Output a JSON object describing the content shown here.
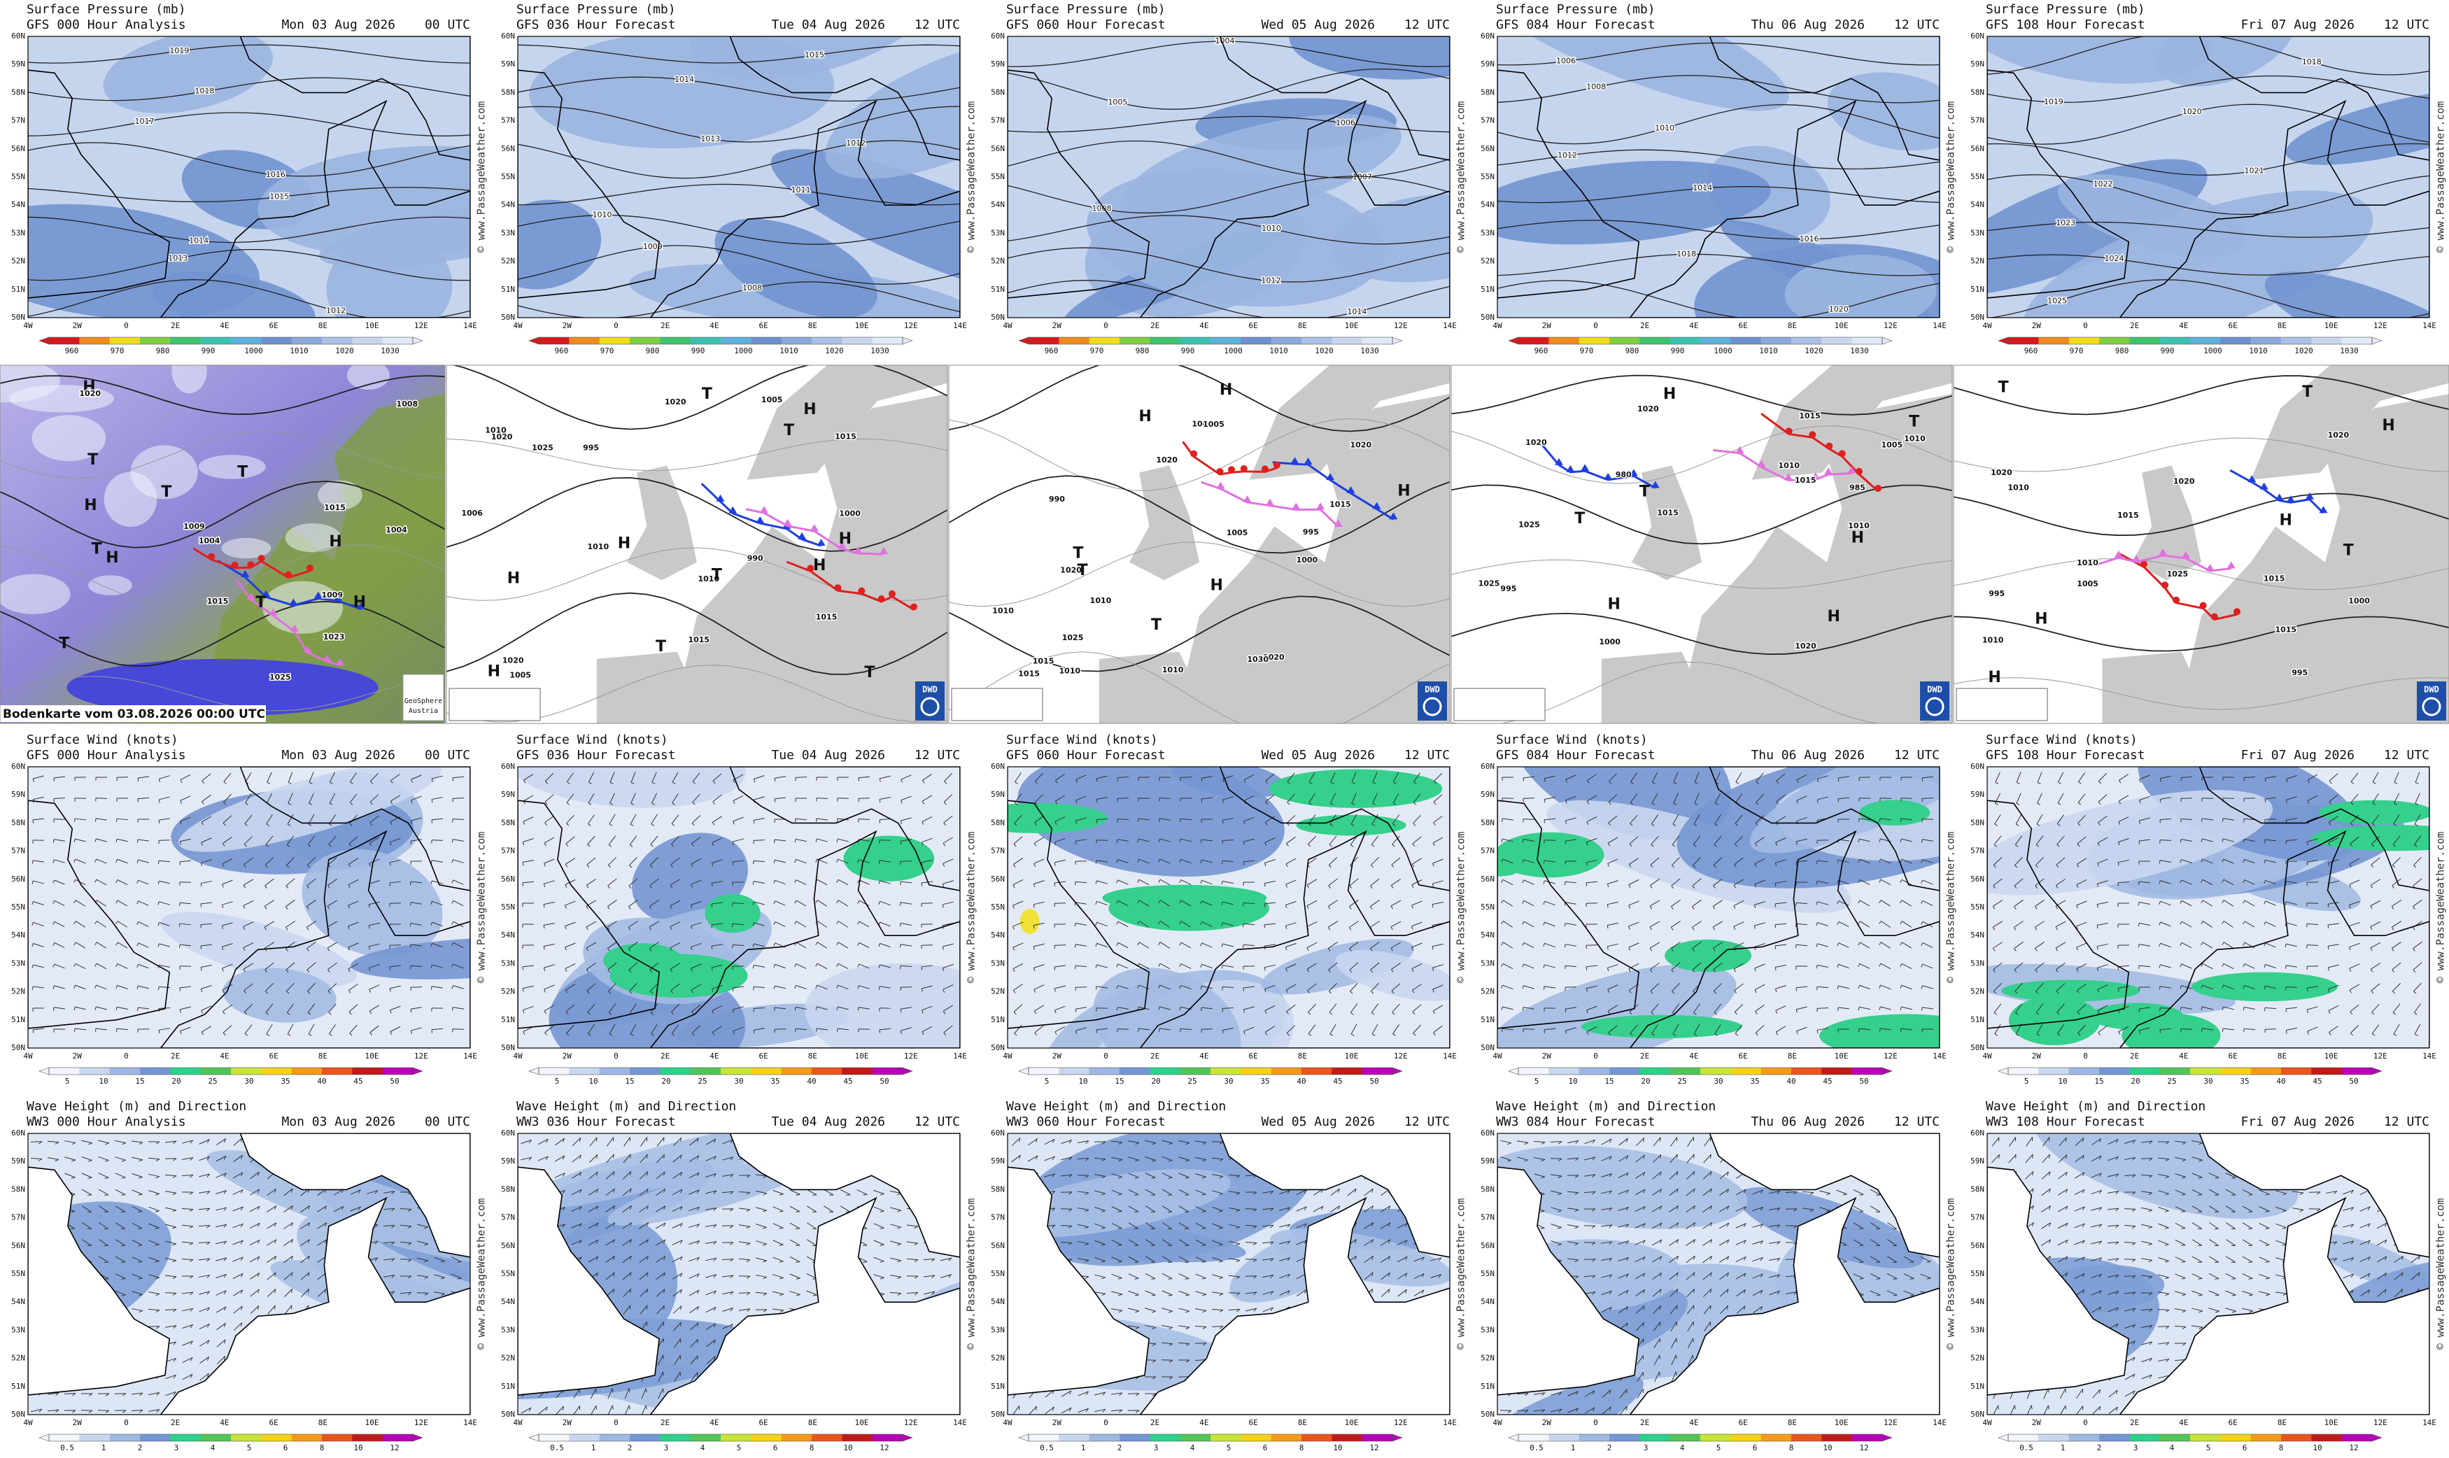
{
  "forecasts": [
    {
      "gfs": "GFS 000 Hour Analysis",
      "ww3": "WW3 000 Hour Analysis",
      "date": "Mon 03 Aug 2026",
      "time": "00 UTC"
    },
    {
      "gfs": "GFS 036 Hour Forecast",
      "ww3": "WW3 036 Hour Forecast",
      "date": "Tue 04 Aug 2026",
      "time": "12 UTC"
    },
    {
      "gfs": "GFS 060 Hour Forecast",
      "ww3": "WW3 060 Hour Forecast",
      "date": "Wed 05 Aug 2026",
      "time": "12 UTC"
    },
    {
      "gfs": "GFS 084 Hour Forecast",
      "ww3": "WW3 084 Hour Forecast",
      "date": "Thu 06 Aug 2026",
      "time": "12 UTC"
    },
    {
      "gfs": "GFS 108 Hour Forecast",
      "ww3": "WW3 108 Hour Forecast",
      "date": "Fri 07 Aug 2026",
      "time": "12 UTC"
    }
  ],
  "latitudes": [
    "60N",
    "59N",
    "58N",
    "57N",
    "56N",
    "55N",
    "54N",
    "53N",
    "52N",
    "51N",
    "50N"
  ],
  "longitudes": [
    "4W",
    "2W",
    "0",
    "2E",
    "4E",
    "6E",
    "8E",
    "10E",
    "12E",
    "14E"
  ],
  "watermark": "© www.PassageWeather.com",
  "pressure": {
    "title": "Surface Pressure (mb)",
    "scale": [
      960,
      970,
      980,
      990,
      1000,
      1010,
      1020,
      1030
    ],
    "colors": [
      "#d7191c",
      "#f08a1c",
      "#f1de1a",
      "#7fd03f",
      "#3dc46e",
      "#39c2b2",
      "#5cb2de",
      "#6d90d0",
      "#8ba8de",
      "#aac0e7",
      "#c8d6ef",
      "#e2e9f6"
    ],
    "isobars": [
      [
        1019,
        1018,
        1017,
        1016,
        1015,
        1014,
        1013,
        1012
      ],
      [
        1015,
        1014,
        1013,
        1012,
        1011,
        1010,
        1009,
        1008
      ],
      [
        1004,
        1005,
        1006,
        1007,
        1008,
        1010,
        1012,
        1014
      ],
      [
        1006,
        1008,
        1010,
        1012,
        1014,
        1016,
        1018,
        1020
      ],
      [
        1018,
        1019,
        1020,
        1021,
        1022,
        1023,
        1024,
        1025
      ]
    ]
  },
  "wind": {
    "title": "Surface Wind (knots)",
    "scale": [
      5,
      10,
      15,
      20,
      25,
      30,
      35,
      40,
      45,
      50
    ],
    "colors": [
      "#f2f5fb",
      "#c8d6ef",
      "#9fb8e2",
      "#7497d3",
      "#2fd08a",
      "#52c45a",
      "#c8e33a",
      "#f4d21c",
      "#f29a1b",
      "#e8551d",
      "#c01a1a",
      "#b800b8"
    ]
  },
  "waves": {
    "title": "Wave Height (m) and Direction",
    "scale": [
      0.5,
      1,
      2,
      3,
      4,
      5,
      6,
      8,
      10,
      12
    ],
    "colors": [
      "#f2f5fb",
      "#c8d6ef",
      "#9fb8e2",
      "#7497d3",
      "#2fd08a",
      "#52c45a",
      "#c8e33a",
      "#f4d21c",
      "#f29a1b",
      "#e8551d",
      "#c01a1a",
      "#b800b8"
    ]
  },
  "fronts": {
    "caption": "Bodenkarte vom 03.08.2026 00:00 UTC",
    "credit": [
      "GeoSphere",
      "Austria"
    ],
    "badge": "DWD",
    "maps": [
      [
        "H",
        "1025",
        "T",
        "1004",
        "H",
        "1023",
        "T",
        "1004",
        "T",
        "1009",
        "H",
        "1020",
        "T",
        "1008",
        "H",
        "1015",
        "T",
        "1009",
        "H",
        "1015",
        "T"
      ],
      [
        "1006",
        "1005",
        "1010",
        "1020",
        "1025",
        "T",
        "H",
        "H",
        "H",
        "1015",
        "1010",
        "T",
        "1005",
        "T",
        "1010",
        "1015",
        "1020",
        "H",
        "1020",
        "990",
        "995",
        "1000",
        "1015",
        "H",
        "H",
        "T",
        "T"
      ],
      [
        "1020",
        "1010",
        "1005",
        "1020",
        "1025",
        "1010",
        "1015",
        "1020",
        "1030",
        "990",
        "995",
        "1000",
        "1005",
        "H",
        "H",
        "T",
        "1010",
        "1005",
        "T",
        "H",
        "1020",
        "1015",
        "H",
        "T",
        "1010",
        "1015"
      ],
      [
        "1010",
        "1015",
        "1020",
        "1025",
        "1010",
        "1015",
        "T",
        "H",
        "1020",
        "1025",
        "T",
        "1010",
        "980",
        "985",
        "995",
        "1000",
        "1005",
        "H",
        "H",
        "H",
        "1015",
        "1020",
        "T"
      ],
      [
        "995",
        "1005",
        "1010",
        "1015",
        "1020",
        "1000",
        "995",
        "1010",
        "1015",
        "1020",
        "1025",
        "H",
        "T",
        "T",
        "H",
        "1015",
        "1010",
        "H",
        "H",
        "1020",
        "T"
      ]
    ]
  }
}
